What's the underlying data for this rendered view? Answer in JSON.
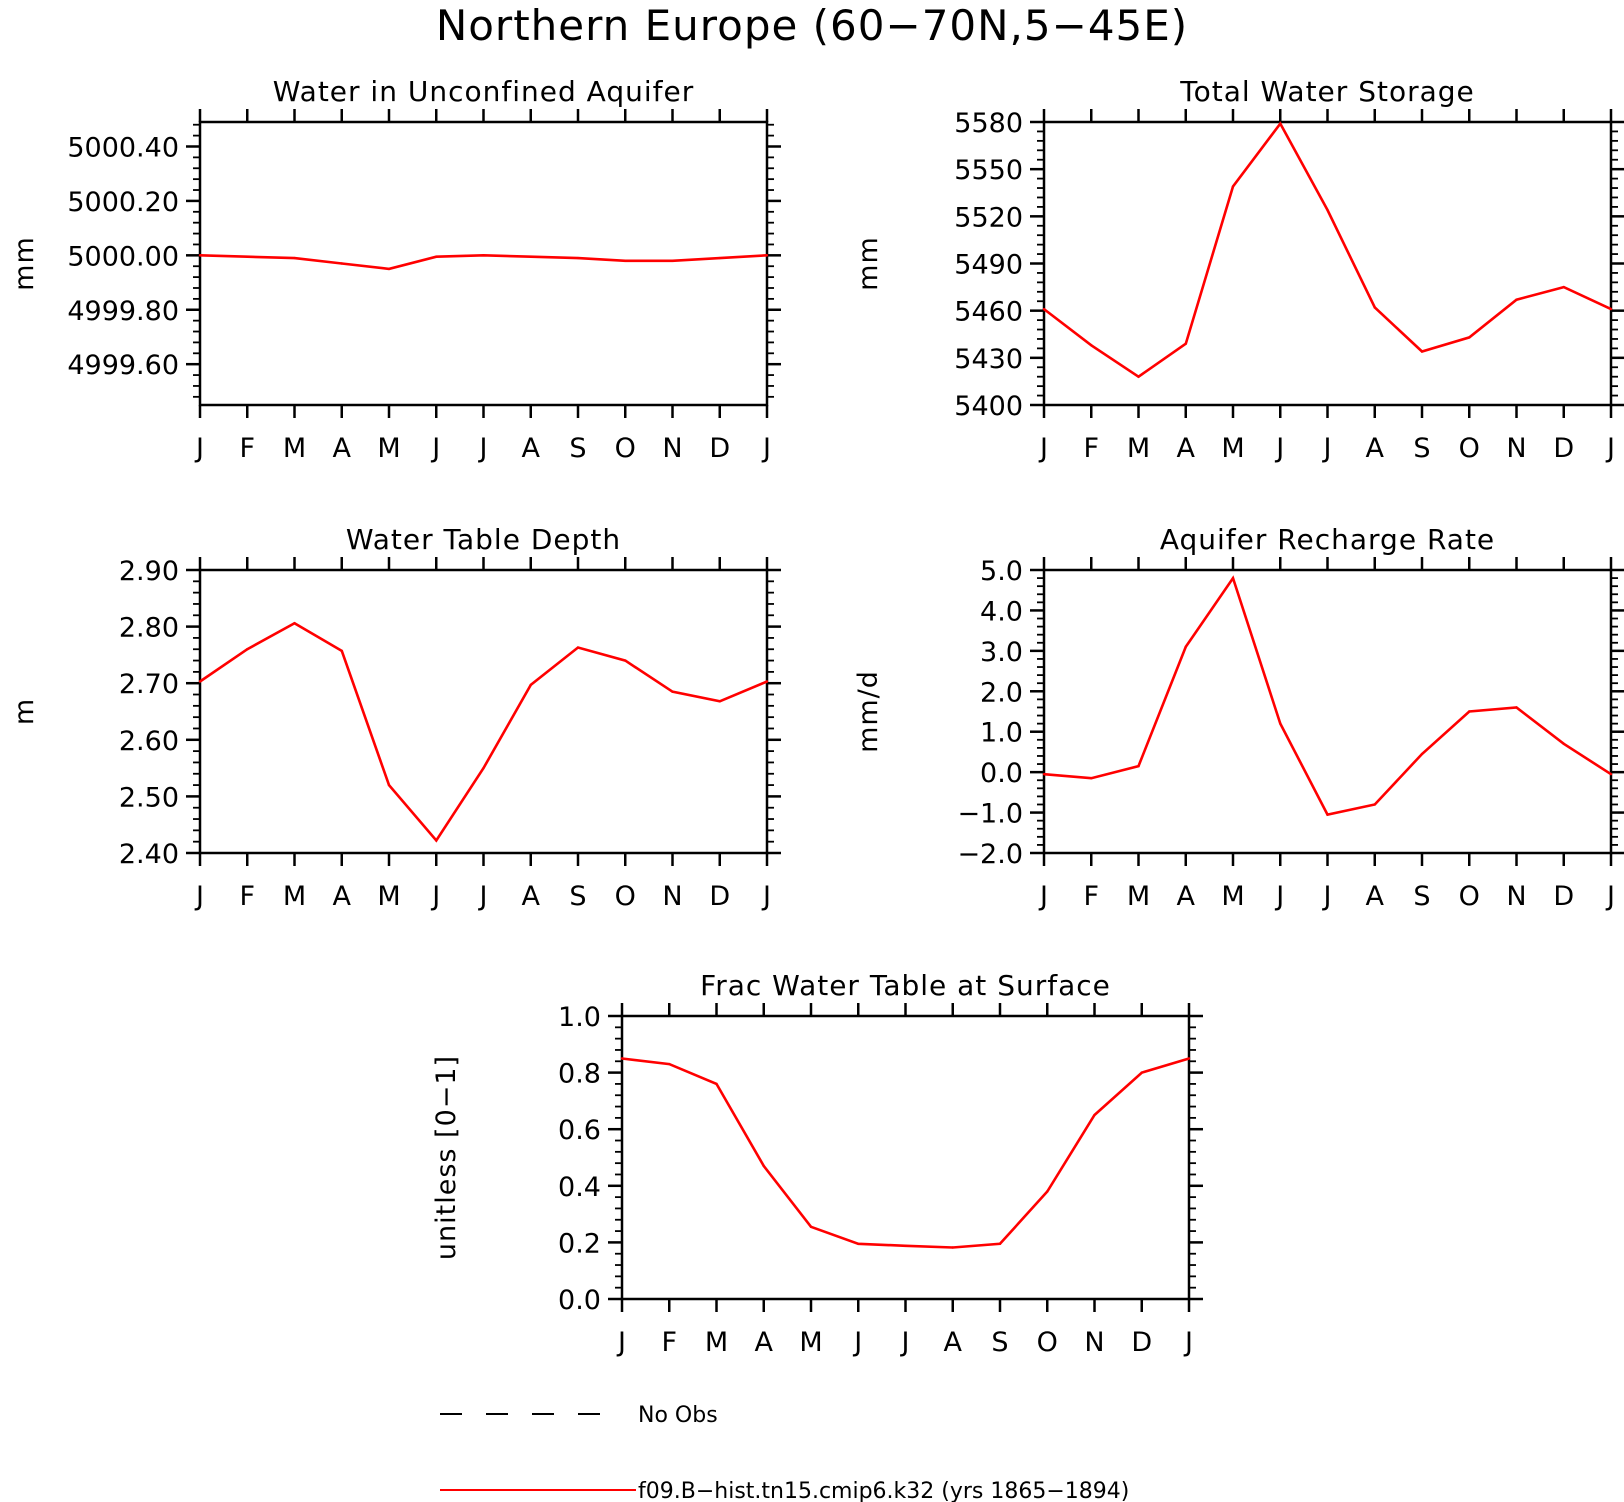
{
  "title": "Northern Europe (60−70N,5−45E)",
  "colors": {
    "series": "#ff0000",
    "obs": "#000000",
    "axes": "#000000"
  },
  "legend": {
    "obs_label": "No Obs",
    "model_label": "f09.B−hist.tn15.cmip6.k32 (yrs 1865−1894)"
  },
  "chart_data": [
    {
      "type": "line",
      "title": "Water in Unconfined Aquifer",
      "ylabel": "mm",
      "categories": [
        "J",
        "F",
        "M",
        "A",
        "M",
        "J",
        "J",
        "A",
        "S",
        "O",
        "N",
        "D",
        "J"
      ],
      "ylim": [
        4999.45,
        5000.49
      ],
      "yticks": [
        4999.6,
        4999.8,
        5000.0,
        5000.2,
        5000.4
      ],
      "ytick_labels": [
        "4999.60",
        "4999.80",
        "5000.00",
        "5000.20",
        "5000.40"
      ],
      "minor_step": 0.04,
      "series": [
        {
          "values": [
            5000.0,
            4999.995,
            4999.99,
            4999.97,
            4999.95,
            4999.995,
            5000.0,
            4999.995,
            4999.99,
            4999.98,
            4999.98,
            4999.99,
            5000.0
          ]
        }
      ]
    },
    {
      "type": "line",
      "title": "Total Water Storage",
      "ylabel": "mm",
      "categories": [
        "J",
        "F",
        "M",
        "A",
        "M",
        "J",
        "J",
        "A",
        "S",
        "O",
        "N",
        "D",
        "J"
      ],
      "ylim": [
        5400,
        5580
      ],
      "yticks": [
        5400,
        5430,
        5460,
        5490,
        5520,
        5550,
        5580
      ],
      "ytick_labels": [
        "5400",
        "5430",
        "5460",
        "5490",
        "5520",
        "5550",
        "5580"
      ],
      "minor_step": 6,
      "series": [
        {
          "values": [
            5461,
            5438,
            5418,
            5439,
            5539,
            5579,
            5524,
            5462,
            5434,
            5443,
            5467,
            5475,
            5461
          ]
        }
      ]
    },
    {
      "type": "line",
      "title": "Water Table Depth",
      "ylabel": "m",
      "categories": [
        "J",
        "F",
        "M",
        "A",
        "M",
        "J",
        "J",
        "A",
        "S",
        "O",
        "N",
        "D",
        "J"
      ],
      "ylim": [
        2.4,
        2.9
      ],
      "yticks": [
        2.4,
        2.5,
        2.6,
        2.7,
        2.8,
        2.9
      ],
      "ytick_labels": [
        "2.40",
        "2.50",
        "2.60",
        "2.70",
        "2.80",
        "2.90"
      ],
      "minor_step": 0.02,
      "series": [
        {
          "values": [
            2.703,
            2.76,
            2.806,
            2.757,
            2.52,
            2.422,
            2.55,
            2.697,
            2.763,
            2.74,
            2.685,
            2.668,
            2.703
          ]
        }
      ]
    },
    {
      "type": "line",
      "title": "Aquifer Recharge Rate",
      "ylabel": "mm/d",
      "categories": [
        "J",
        "F",
        "M",
        "A",
        "M",
        "J",
        "J",
        "A",
        "S",
        "O",
        "N",
        "D",
        "J"
      ],
      "ylim": [
        -2.0,
        5.0
      ],
      "yticks": [
        -2.0,
        -1.0,
        0.0,
        1.0,
        2.0,
        3.0,
        4.0,
        5.0
      ],
      "ytick_labels": [
        "−2.0",
        "−1.0",
        "0.0",
        "1.0",
        "2.0",
        "3.0",
        "4.0",
        "5.0"
      ],
      "minor_step": 0.2,
      "series": [
        {
          "values": [
            -0.05,
            -0.15,
            0.15,
            3.1,
            4.8,
            1.2,
            -1.05,
            -0.8,
            0.45,
            1.5,
            1.6,
            0.7,
            -0.05
          ]
        }
      ]
    },
    {
      "type": "line",
      "title": "Frac Water Table at Surface",
      "ylabel": "unitless [0−1]",
      "categories": [
        "J",
        "F",
        "M",
        "A",
        "M",
        "J",
        "J",
        "A",
        "S",
        "O",
        "N",
        "D",
        "J"
      ],
      "ylim": [
        0.0,
        1.0
      ],
      "yticks": [
        0.0,
        0.2,
        0.4,
        0.6,
        0.8,
        1.0
      ],
      "ytick_labels": [
        "0.0",
        "0.2",
        "0.4",
        "0.6",
        "0.8",
        "1.0"
      ],
      "minor_step": 0.04,
      "series": [
        {
          "values": [
            0.85,
            0.83,
            0.76,
            0.47,
            0.255,
            0.195,
            0.188,
            0.182,
            0.195,
            0.38,
            0.65,
            0.8,
            0.85
          ]
        }
      ]
    }
  ]
}
